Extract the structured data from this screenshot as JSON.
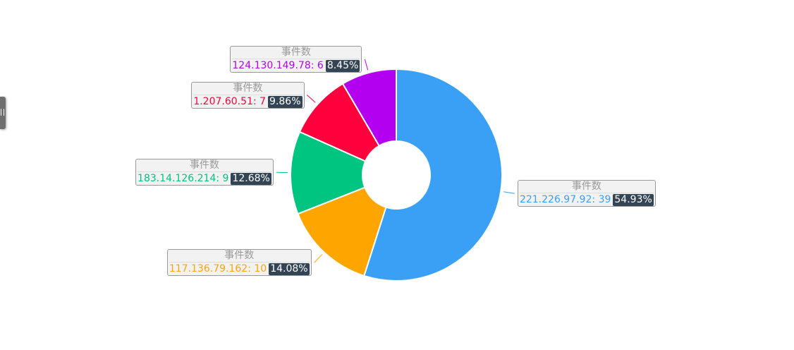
{
  "chart_data": {
    "type": "pie",
    "variant": "donut",
    "series_name": "事件数",
    "slices": [
      {
        "name": "221.226.97.92",
        "value": 39,
        "percent": "54.93%",
        "color": "#3aa0f5"
      },
      {
        "name": "117.136.79.162",
        "value": 10,
        "percent": "14.08%",
        "color": "#ffa500"
      },
      {
        "name": "183.14.126.214",
        "value": 9,
        "percent": "12.68%",
        "color": "#00c580"
      },
      {
        "name": "1.207.60.51",
        "value": 7,
        "percent": "9.86%",
        "color": "#ff003c"
      },
      {
        "name": "124.130.149.78",
        "value": 6,
        "percent": "8.45%",
        "color": "#b400f0"
      }
    ],
    "start_angle_deg": 90,
    "direction": "clockwise",
    "legend": "none"
  },
  "colors": {
    "label_background": "#f2f2f2",
    "label_border": "#999999",
    "percent_badge": "#334455"
  }
}
